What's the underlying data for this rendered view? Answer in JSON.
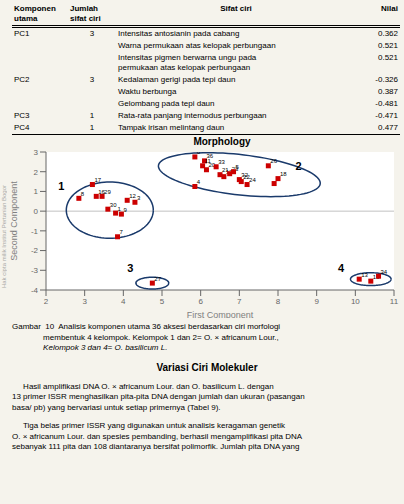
{
  "chart_data": {
    "type": "scatter",
    "title": "Morphology",
    "x_label": "First Component",
    "y_label": "Second Component",
    "xlim": [
      2,
      11
    ],
    "ylim": [
      -4,
      3
    ],
    "xticks": [
      2,
      3,
      4,
      5,
      6,
      7,
      8,
      9,
      10,
      11
    ],
    "yticks": [
      -4,
      -3,
      -2,
      -1,
      0,
      1,
      2,
      3
    ],
    "grid": false,
    "color": "#cc0000",
    "marker": "square",
    "background_color": "#f5f3ec",
    "plot_background_color": "#ffffff",
    "x": [
      2.85,
      3.2,
      3.3,
      3.45,
      3.6,
      3.8,
      3.95,
      4.1,
      4.3,
      3.85,
      5.85,
      6.1,
      6.05,
      6.15,
      6.4,
      6.5,
      6.6,
      6.75,
      6.85,
      7.0,
      7.05,
      5.85,
      7.2,
      7.75,
      7.9,
      8.0,
      4.75,
      10.1,
      10.4,
      10.6
    ],
    "values": [
      0.65,
      1.35,
      0.75,
      0.75,
      0.1,
      -0.1,
      -0.15,
      0.55,
      0.45,
      -1.3,
      2.75,
      2.55,
      2.3,
      2.1,
      2.25,
      1.85,
      1.75,
      1.9,
      2.0,
      1.6,
      1.5,
      1.25,
      1.35,
      2.3,
      1.4,
      1.65,
      -3.65,
      -3.45,
      -3.55,
      -3.3
    ],
    "point_labels": [
      "8",
      "17",
      "16",
      "29",
      "30",
      "1",
      "9",
      "12",
      "3",
      "7",
      "6",
      "36",
      "11",
      "20",
      "33",
      "21",
      "17",
      "23",
      "5",
      "32",
      "22",
      "4",
      "24",
      "26",
      "2",
      "18",
      "27",
      "13",
      "15",
      "34"
    ],
    "hlines": [
      0
    ],
    "ellipse_color": "#1a3a6b",
    "groups": [
      {
        "label": "1",
        "label_x": 2.32,
        "label_y": 1.05,
        "cx": 3.65,
        "cy": 0.05,
        "width": 2.25,
        "height": 2.85,
        "angle": 0
      },
      {
        "label": "2",
        "label_x": 8.45,
        "label_y": 2.1,
        "cx": 7.0,
        "cy": 1.85,
        "width": 4.3,
        "height": 2.0,
        "angle": -15
      },
      {
        "label": "3",
        "label_x": 4.1,
        "label_y": -3.1,
        "cx": 4.75,
        "cy": -3.65,
        "width": 0.85,
        "height": 0.6,
        "angle": 0
      },
      {
        "label": "4",
        "label_x": 9.55,
        "label_y": -3.1,
        "cx": 10.4,
        "cy": -3.45,
        "width": 1.05,
        "height": 0.65,
        "angle": 0
      }
    ]
  },
  "table": {
    "headers": [
      "Komponen\nutama",
      "Jumlah\nsifat ciri",
      "Sifat ciri",
      "Nilai"
    ],
    "rows": [
      [
        "PC1",
        "3",
        "Intensitas antosianin pada cabang",
        "0.362"
      ],
      [
        "",
        "",
        "Warna permukaan atas kelopak perbungaan",
        "0.521"
      ],
      [
        "",
        "",
        "Intensitas pigmen berwarna ungu pada\npermukaan atas kelopak perbungaan",
        "0.521"
      ],
      [
        "PC2",
        "3",
        "Kedalaman gerigi pada tepi daun",
        "-0.326"
      ],
      [
        "",
        "",
        "Waktu berbunga",
        "0.387"
      ],
      [
        "",
        "",
        "Gelombang pada tepi daun",
        "-0.481"
      ],
      [
        "PC3",
        "1",
        "Rata-rata panjang internodus perbungaan",
        "-0.471"
      ],
      [
        "PC4",
        "1",
        "Tampak irisan melintang daun",
        "0.477"
      ]
    ]
  },
  "watermark": "Hak cipta milik Institut Pertanian Bogor",
  "caption": [
    "Gambar  10  Analisis komponen utama 36 aksesi berdasarkan ciri morfologi",
    "              membentuk 4 kelompok. Kelompok 1 dan 2= O. × africanum Lour.,",
    "              Kelompok 3 dan 4= O. basilicum L."
  ],
  "section_heading": "Variasi Ciri Molekuler",
  "body_text": [
    "     Hasil amplifikasi DNA O. × africanum Lour. dan O. basilicum L. dengan\n13 primer ISSR menghasilkan pita-pita DNA dengan jumlah dan ukuran (pasangan\nbasa/ pb) yang bervariasi untuk setiap primernya (Tabel 9).",
    "     Tiga belas primer ISSR yang digunakan untuk analisis keragaman genetik\nO. × africanum Lour. dan spesies pembanding, berhasil mengamplifikasi pita DNA\nsebanyak 111 pita dan 108 diantaranya bersifat polimorfik. Jumlah pita DNA yang"
  ]
}
